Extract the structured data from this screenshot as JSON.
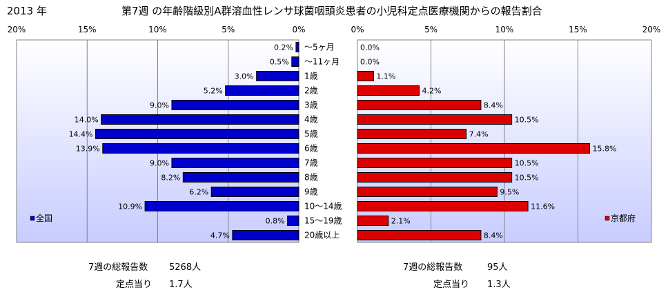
{
  "header": {
    "year": "2013 年",
    "title": "第7週 の年齢階級別A群溶血性レンサ球菌咽頭炎患者の小児科定点医療機関からの報告割合"
  },
  "chart_data": {
    "type": "bar",
    "orientation": "horizontal-butterfly",
    "categories": [
      "～5ヶ月",
      "～11ヶ月",
      "1歳",
      "2歳",
      "3歳",
      "4歳",
      "5歳",
      "6歳",
      "7歳",
      "8歳",
      "9歳",
      "10～14歳",
      "15～19歳",
      "20歳以上"
    ],
    "xlim": [
      0,
      20
    ],
    "tick_labels": [
      "0%",
      "5%",
      "10%",
      "15%",
      "20%"
    ],
    "grid": true,
    "series": [
      {
        "name": "全国",
        "side": "left",
        "color": "#0000cc",
        "values": [
          0.2,
          0.5,
          3.0,
          5.2,
          9.0,
          14.0,
          14.4,
          13.9,
          9.0,
          8.2,
          6.2,
          10.9,
          0.8,
          4.7
        ],
        "labels": [
          "0.2%",
          "0.5%",
          "3.0%",
          "5.2%",
          "9.0%",
          "14.0%",
          "14.4%",
          "13.9%",
          "9.0%",
          "8.2%",
          "6.2%",
          "10.9%",
          "0.8%",
          "4.7%"
        ],
        "legend_placement": "bottom-left"
      },
      {
        "name": "京都府",
        "side": "right",
        "color": "#dd0000",
        "values": [
          0.0,
          0.0,
          1.1,
          4.2,
          8.4,
          10.5,
          7.4,
          15.8,
          10.5,
          10.5,
          9.5,
          11.6,
          2.1,
          8.4
        ],
        "labels": [
          "0.0%",
          "0.0%",
          "1.1%",
          "4.2%",
          "8.4%",
          "10.5%",
          "7.4%",
          "15.8%",
          "10.5%",
          "10.5%",
          "9.5%",
          "11.6%",
          "2.1%",
          "8.4%"
        ],
        "legend_placement": "bottom-right"
      }
    ]
  },
  "summary": {
    "left": {
      "total_label": "7週の総報告数",
      "total_value": "5268人",
      "per_label": "定点当り",
      "per_value": "1.7人"
    },
    "right": {
      "total_label": "7週の総報告数",
      "total_value": "95人",
      "per_label": "定点当り",
      "per_value": "1.3人"
    }
  },
  "colors": {
    "plot_bg_top": "#ffffff",
    "plot_bg_bottom": "#c8ccff"
  }
}
